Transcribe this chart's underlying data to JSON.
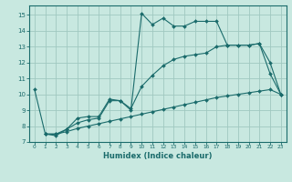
{
  "xlabel": "Humidex (Indice chaleur)",
  "ylabel": "",
  "bg_color": "#c8e8e0",
  "grid_color": "#a0c8c0",
  "line_color": "#1a6b6b",
  "xlim": [
    -0.5,
    23.5
  ],
  "ylim": [
    7.0,
    15.6
  ],
  "yticks": [
    7,
    8,
    9,
    10,
    11,
    12,
    13,
    14,
    15
  ],
  "xticks": [
    0,
    1,
    2,
    3,
    4,
    5,
    6,
    7,
    8,
    9,
    10,
    11,
    12,
    13,
    14,
    15,
    16,
    17,
    18,
    19,
    20,
    21,
    22,
    23
  ],
  "line1_x": [
    0,
    1,
    2,
    3,
    4,
    5,
    6,
    7,
    8,
    9,
    10,
    11,
    12,
    13,
    14,
    15,
    16,
    17,
    18,
    19,
    20,
    21,
    22,
    23
  ],
  "line1_y": [
    10.3,
    7.5,
    7.4,
    7.8,
    8.5,
    8.6,
    8.6,
    9.7,
    9.6,
    9.0,
    15.1,
    14.4,
    14.8,
    14.3,
    14.3,
    14.6,
    14.6,
    14.6,
    13.1,
    13.1,
    13.1,
    13.2,
    11.3,
    10.0
  ],
  "line2_x": [
    1,
    2,
    3,
    4,
    5,
    6,
    7,
    8,
    9,
    10,
    11,
    12,
    13,
    14,
    15,
    16,
    17,
    18,
    19,
    20,
    21,
    22,
    23
  ],
  "line2_y": [
    7.5,
    7.5,
    7.65,
    7.85,
    8.0,
    8.15,
    8.3,
    8.45,
    8.6,
    8.75,
    8.9,
    9.05,
    9.2,
    9.35,
    9.5,
    9.65,
    9.8,
    9.9,
    10.0,
    10.1,
    10.2,
    10.3,
    10.0
  ],
  "line3_x": [
    1,
    2,
    3,
    4,
    5,
    6,
    7,
    8,
    9,
    10,
    11,
    12,
    13,
    14,
    15,
    16,
    17,
    18,
    19,
    20,
    21,
    22,
    23
  ],
  "line3_y": [
    7.5,
    7.5,
    7.8,
    8.2,
    8.4,
    8.5,
    9.6,
    9.6,
    9.1,
    10.5,
    11.2,
    11.8,
    12.2,
    12.4,
    12.5,
    12.6,
    13.0,
    13.1,
    13.1,
    13.1,
    13.2,
    12.0,
    10.0
  ]
}
